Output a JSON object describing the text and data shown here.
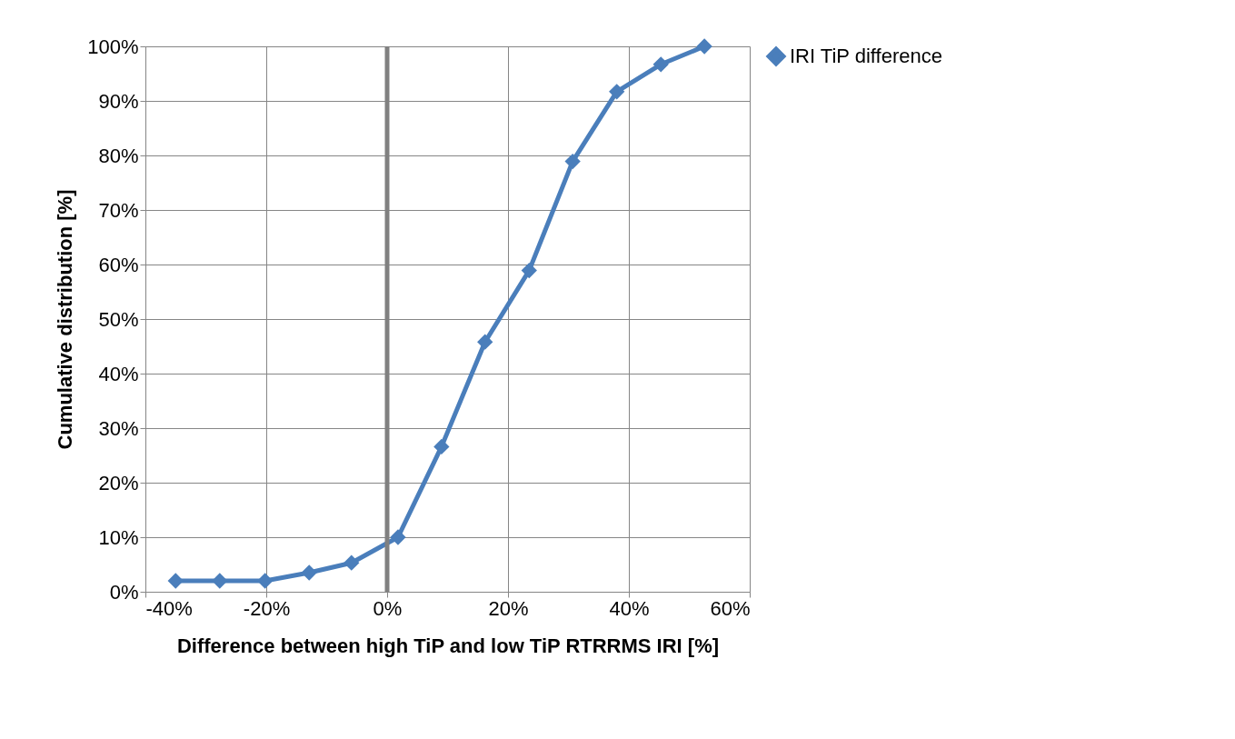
{
  "chart_data": {
    "type": "line",
    "xlabel": "Difference between high TiP and low TiP RTRRMS IRI [%]",
    "ylabel": "Cumulative distribution [%]",
    "x": [
      -35.0,
      -27.7,
      -20.2,
      -12.9,
      -5.9,
      1.8,
      9.0,
      16.2,
      23.5,
      30.7,
      38.0,
      45.3,
      52.5
    ],
    "series": [
      {
        "name": "IRI TiP difference",
        "color": "#4a7ebb",
        "values": [
          2,
          2,
          2,
          3.5,
          5.3,
          10,
          26.6,
          45.8,
          58.9,
          78.9,
          91.7,
          96.7,
          100
        ]
      }
    ],
    "xlim": [
      -40,
      60
    ],
    "xticks": [
      {
        "value": -40,
        "label": "-40%"
      },
      {
        "value": -20,
        "label": "-20%"
      },
      {
        "value": 0,
        "label": "0%"
      },
      {
        "value": 20,
        "label": "20%"
      },
      {
        "value": 40,
        "label": "40%"
      },
      {
        "value": 60,
        "label": "60%"
      }
    ],
    "ylim": [
      0,
      100
    ],
    "yticks": [
      {
        "value": 0,
        "label": "0%"
      },
      {
        "value": 10,
        "label": "10%"
      },
      {
        "value": 20,
        "label": "20%"
      },
      {
        "value": 30,
        "label": "30%"
      },
      {
        "value": 40,
        "label": "40%"
      },
      {
        "value": 50,
        "label": "50%"
      },
      {
        "value": 60,
        "label": "60%"
      },
      {
        "value": 70,
        "label": "70%"
      },
      {
        "value": 80,
        "label": "80%"
      },
      {
        "value": 90,
        "label": "90%"
      },
      {
        "value": 100,
        "label": "100%"
      }
    ],
    "ref_lines": [
      {
        "axis": "x",
        "value": 0,
        "color": "#808080"
      }
    ],
    "grid": true,
    "legend": "right",
    "marker": "diamond",
    "line_style": "solid"
  }
}
